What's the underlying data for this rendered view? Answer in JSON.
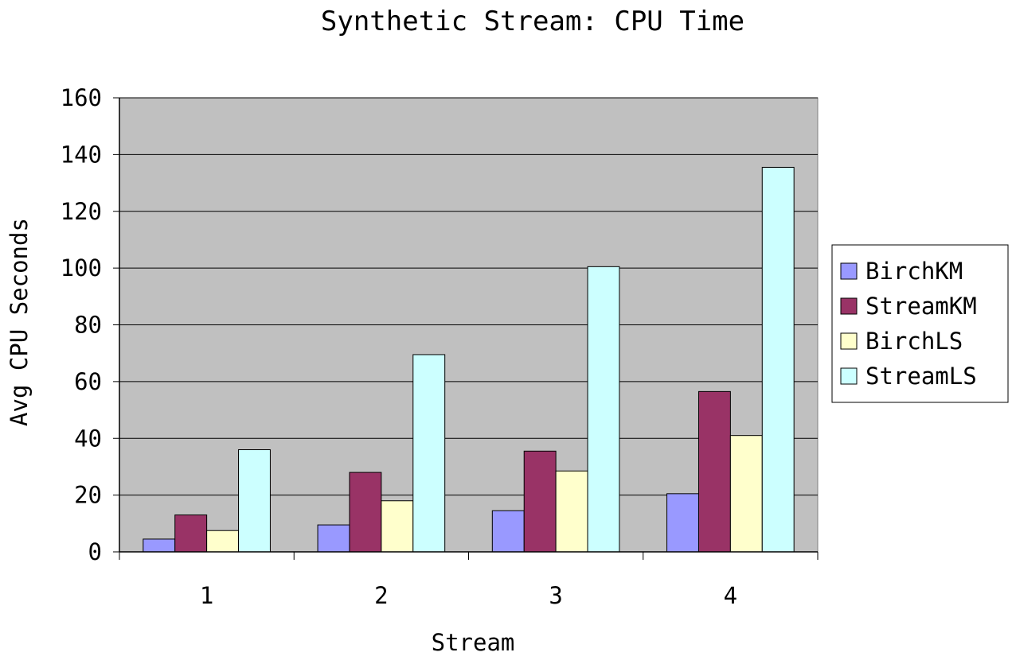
{
  "chart_data": {
    "type": "bar",
    "title": "Synthetic Stream: CPU Time",
    "xlabel": "Stream",
    "ylabel": "Avg CPU Seconds",
    "categories": [
      "1",
      "2",
      "3",
      "4"
    ],
    "ylim": [
      0,
      160
    ],
    "yticks": [
      0,
      20,
      40,
      60,
      80,
      100,
      120,
      140,
      160
    ],
    "grid": true,
    "legend": "right",
    "plot_background": "#c0c0c0",
    "series": [
      {
        "name": "BirchKM",
        "color": "#9999ff",
        "values": [
          4.5,
          9.5,
          14.5,
          20.5
        ]
      },
      {
        "name": "StreamKM",
        "color": "#993366",
        "values": [
          13,
          28,
          35.5,
          56.5
        ]
      },
      {
        "name": "BirchLS",
        "color": "#ffffcc",
        "values": [
          7.5,
          18,
          28.5,
          41
        ]
      },
      {
        "name": "StreamLS",
        "color": "#ccffff",
        "values": [
          36,
          69.5,
          100.5,
          135.5
        ]
      }
    ]
  }
}
